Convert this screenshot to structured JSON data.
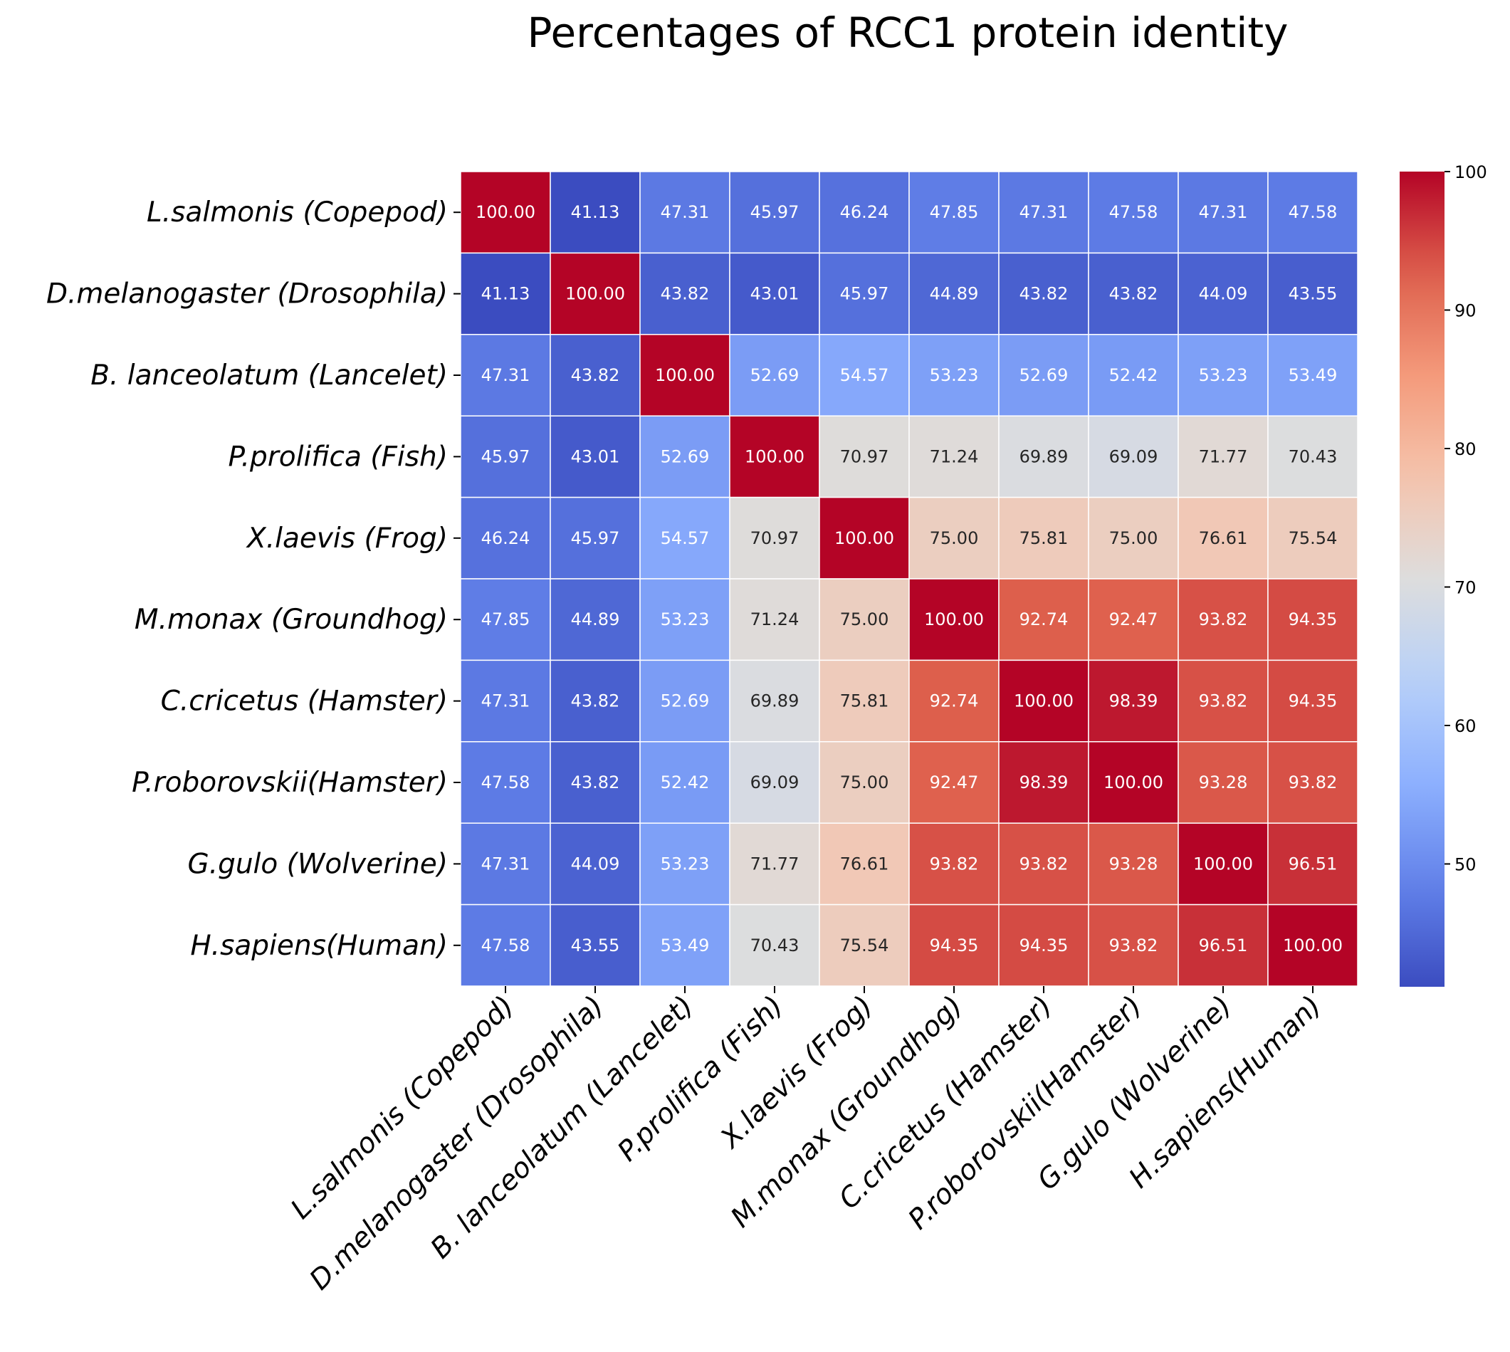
{
  "chart_data": {
    "type": "heatmap",
    "title": "Percentages of RCC1 protein identity",
    "xlabel": "",
    "ylabel": "",
    "labels": [
      "L.salmonis (Copepod)",
      "D.melanogaster (Drosophila)",
      "B. lanceolatum (Lancelet)",
      "P.prolifica (Fish)",
      "X.laevis (Frog)",
      "M.monax (Groundhog)",
      "C.cricetus (Hamster)",
      "P.roborovskii(Hamster)",
      "G.gulo (Wolverine)",
      "H.sapiens(Human)"
    ],
    "values": [
      [
        100.0,
        41.13,
        47.31,
        45.97,
        46.24,
        47.85,
        47.31,
        47.58,
        47.31,
        47.58
      ],
      [
        41.13,
        100.0,
        43.82,
        43.01,
        45.97,
        44.89,
        43.82,
        43.82,
        44.09,
        43.55
      ],
      [
        47.31,
        43.82,
        100.0,
        52.69,
        54.57,
        53.23,
        52.69,
        52.42,
        53.23,
        53.49
      ],
      [
        45.97,
        43.01,
        52.69,
        100.0,
        70.97,
        71.24,
        69.89,
        69.09,
        71.77,
        70.43
      ],
      [
        46.24,
        45.97,
        54.57,
        70.97,
        100.0,
        75.0,
        75.81,
        75.0,
        76.61,
        75.54
      ],
      [
        47.85,
        44.89,
        53.23,
        71.24,
        75.0,
        100.0,
        92.74,
        92.47,
        93.82,
        94.35
      ],
      [
        47.31,
        43.82,
        52.69,
        69.89,
        75.81,
        92.74,
        100.0,
        98.39,
        93.82,
        94.35
      ],
      [
        47.58,
        43.82,
        52.42,
        69.09,
        75.0,
        92.47,
        98.39,
        100.0,
        93.28,
        93.82
      ],
      [
        47.31,
        44.09,
        53.23,
        71.77,
        76.61,
        93.82,
        93.82,
        93.28,
        100.0,
        96.51
      ],
      [
        47.58,
        43.55,
        53.49,
        70.43,
        75.54,
        94.35,
        94.35,
        93.82,
        96.51,
        100.0
      ]
    ],
    "colormap": "coolwarm",
    "vmin": 41.13,
    "vmax": 100,
    "colorbar_ticks": [
      50,
      60,
      70,
      80,
      90,
      100
    ],
    "annotation_format": "0.00",
    "grid": false,
    "legend": "colorbar-right"
  }
}
